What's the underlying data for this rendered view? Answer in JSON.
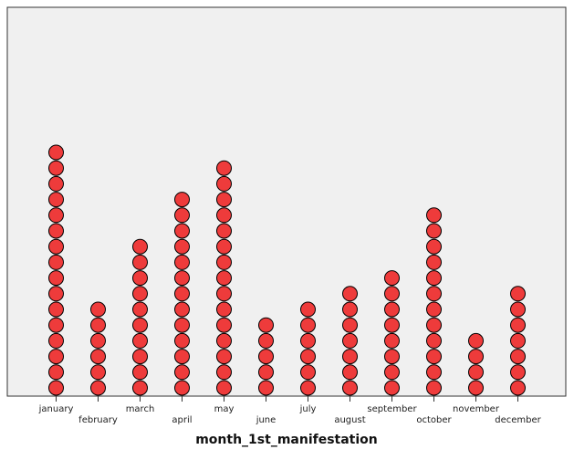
{
  "chart_data": {
    "type": "scatter",
    "subtype": "dot-plot",
    "xlabel": "month_1st_manifestation",
    "ylabel": "",
    "title": "",
    "categories": [
      "january",
      "february",
      "march",
      "april",
      "may",
      "june",
      "july",
      "august",
      "september",
      "october",
      "november",
      "december"
    ],
    "values": [
      16,
      6,
      10,
      13,
      15,
      5,
      6,
      7,
      8,
      12,
      4,
      7
    ],
    "ylim": [
      0,
      25
    ],
    "grid": false,
    "legend": "none",
    "colors": {
      "marker_fill": "#ee3b3b",
      "marker_stroke": "#000000",
      "plot_background": "#f0f0f0",
      "axis": "#333333"
    }
  }
}
